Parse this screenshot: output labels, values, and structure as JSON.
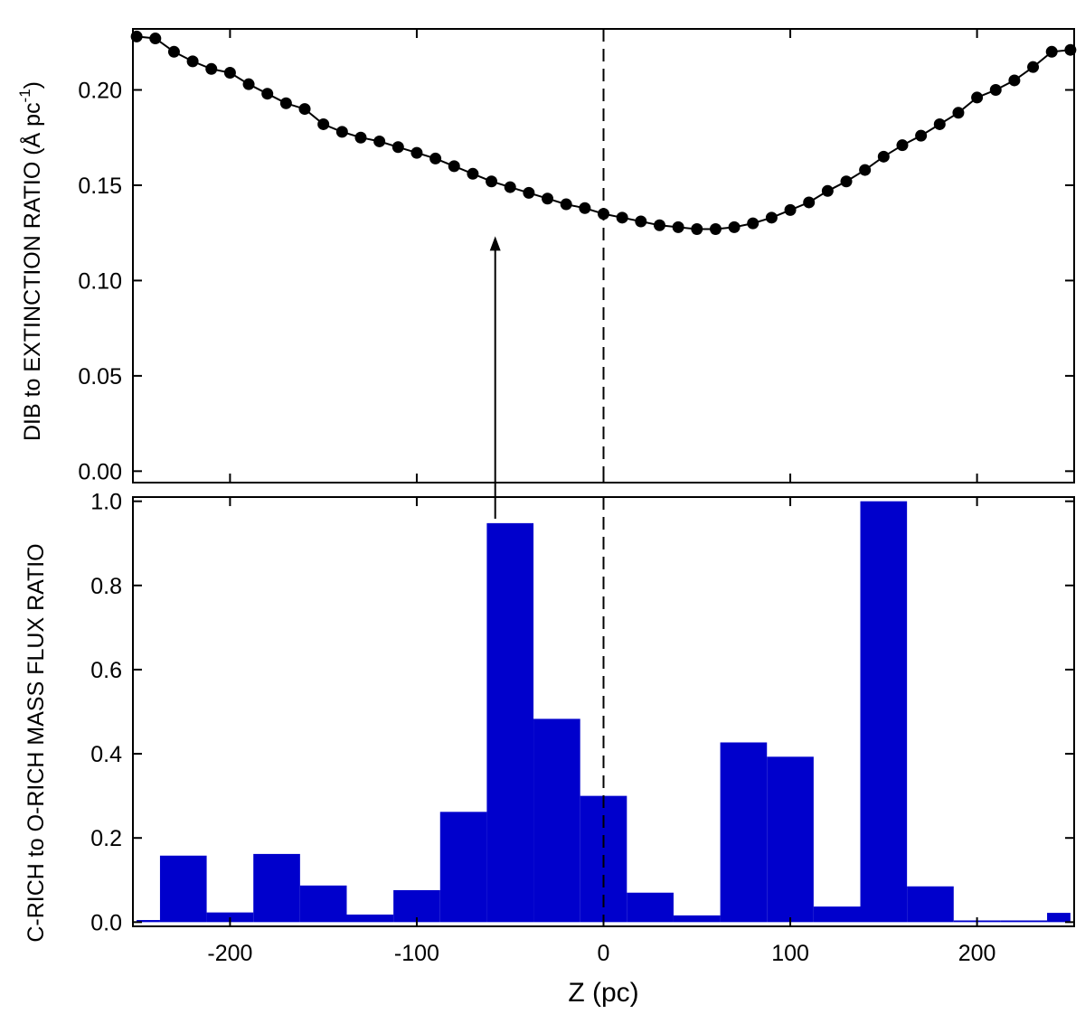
{
  "colors": {
    "bar_fill": "#0000cc",
    "line": "#000000",
    "marker": "#000000",
    "background": "#ffffff"
  },
  "chart_data": [
    {
      "type": "line",
      "panel": "top",
      "ylabel_main": "DIB to EXTINCTION RATIO (Å pc",
      "ylabel_sup": "-1",
      "ylabel_close": ")",
      "xlim": [
        -252,
        252
      ],
      "ylim": [
        -0.006,
        0.232
      ],
      "yticks": [
        0.0,
        0.05,
        0.1,
        0.15,
        0.2
      ],
      "ytick_labels": [
        "0.00",
        "0.05",
        "0.10",
        "0.15",
        "0.20"
      ],
      "grid": false,
      "reference_line_x": 0,
      "markers": "filled-circle",
      "arrow": {
        "x": -58,
        "from_y_fraction_lower_panel": 0.95,
        "to_y": 0.128
      },
      "x": [
        -250,
        -240,
        -230,
        -220,
        -210,
        -200,
        -190,
        -180,
        -170,
        -160,
        -150,
        -140,
        -130,
        -120,
        -110,
        -100,
        -90,
        -80,
        -70,
        -60,
        -50,
        -40,
        -30,
        -20,
        -10,
        0,
        10,
        20,
        30,
        40,
        50,
        60,
        70,
        80,
        90,
        100,
        110,
        120,
        130,
        140,
        150,
        160,
        170,
        180,
        190,
        200,
        210,
        220,
        230,
        240,
        250
      ],
      "y": [
        0.228,
        0.227,
        0.22,
        0.215,
        0.211,
        0.209,
        0.203,
        0.198,
        0.193,
        0.19,
        0.182,
        0.178,
        0.175,
        0.173,
        0.17,
        0.167,
        0.164,
        0.16,
        0.156,
        0.152,
        0.149,
        0.146,
        0.143,
        0.14,
        0.138,
        0.135,
        0.133,
        0.131,
        0.129,
        0.128,
        0.127,
        0.127,
        0.128,
        0.13,
        0.133,
        0.137,
        0.141,
        0.147,
        0.152,
        0.158,
        0.165,
        0.171,
        0.176,
        0.182,
        0.188,
        0.196,
        0.2,
        0.205,
        0.212,
        0.22,
        0.221
      ]
    },
    {
      "type": "bar",
      "panel": "bottom",
      "xlabel": "Z (pc)",
      "ylabel": "C-RICH to O-RICH MASS FLUX RATIO",
      "xlim": [
        -252,
        252
      ],
      "ylim": [
        -0.01,
        1.01
      ],
      "xticks": [
        -200,
        -100,
        0,
        100,
        200
      ],
      "xtick_labels": [
        "-200",
        "-100",
        "0",
        "100",
        "200"
      ],
      "yticks": [
        0.0,
        0.2,
        0.4,
        0.6,
        0.8,
        1.0
      ],
      "ytick_labels": [
        "0.0",
        "0.2",
        "0.4",
        "0.6",
        "0.8",
        "1.0"
      ],
      "grid": false,
      "reference_line_x": 0,
      "bin_width": 25,
      "bin_starts": [
        -250,
        -237.5,
        -212.5,
        -187.5,
        -162.5,
        -137.5,
        -112.5,
        -87.5,
        -62.5,
        -37.5,
        -12.5,
        12.5,
        37.5,
        62.5,
        87.5,
        112.5,
        137.5,
        162.5,
        187.5,
        212.5,
        237.5
      ],
      "bin_widths": [
        12.5,
        25,
        25,
        25,
        25,
        25,
        25,
        25,
        25,
        25,
        25,
        25,
        25,
        25,
        25,
        25,
        25,
        25,
        25,
        25,
        12.5
      ],
      "values": [
        0.005,
        0.158,
        0.023,
        0.162,
        0.087,
        0.018,
        0.076,
        0.262,
        0.948,
        0.483,
        0.3,
        0.07,
        0.016,
        0.427,
        0.393,
        0.037,
        1.0,
        0.085,
        0.004,
        0.004,
        0.022
      ]
    }
  ]
}
